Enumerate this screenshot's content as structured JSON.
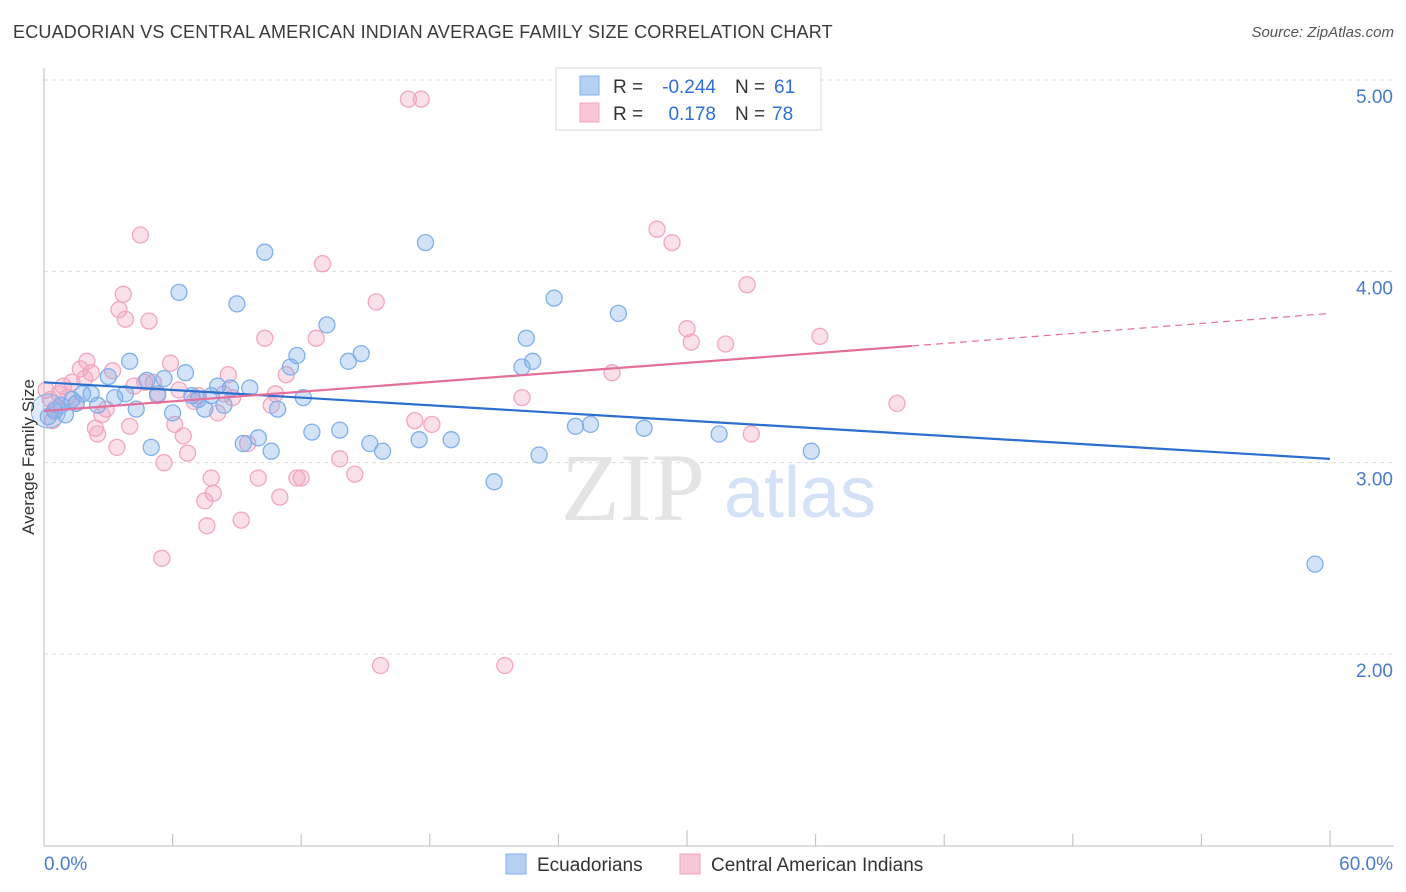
{
  "title": "ECUADORIAN VS CENTRAL AMERICAN INDIAN AVERAGE FAMILY SIZE CORRELATION CHART",
  "source": "Source: ZipAtlas.com",
  "watermark": {
    "zip": "ZIP",
    "atlas": "atlas"
  },
  "legend_top": [
    {
      "r_label": "R =",
      "r_value": "-0.244",
      "n_label": "N =",
      "n_value": "61"
    },
    {
      "r_label": "R =",
      "r_value": "0.178",
      "n_label": "N =",
      "n_value": "78"
    }
  ],
  "chart_data": {
    "type": "scatter",
    "title": "ECUADORIAN VS CENTRAL AMERICAN INDIAN AVERAGE FAMILY SIZE CORRELATION CHART",
    "xlabel": "",
    "ylabel": "Average Family Size",
    "xlim": [
      0,
      60
    ],
    "ylim": [
      1.0,
      5.1
    ],
    "x_tick_labels": [
      "0.0%",
      "60.0%"
    ],
    "y_ticks": [
      2.0,
      3.0,
      4.0,
      5.0
    ],
    "y_tick_labels": [
      "2.00",
      "3.00",
      "4.00",
      "5.00"
    ],
    "grid": true,
    "legend_position": "bottom-center",
    "series": [
      {
        "name": "Ecuadorians",
        "color": "#7fb0ec",
        "line_color": "#2d6fce",
        "r": -0.244,
        "n": 61,
        "trend": {
          "x": [
            0,
            60
          ],
          "y": [
            3.42,
            3.02
          ]
        },
        "points": [
          [
            0.2,
            3.24
          ],
          [
            0.5,
            3.27
          ],
          [
            0.8,
            3.3
          ],
          [
            1.0,
            3.25
          ],
          [
            1.3,
            3.33
          ],
          [
            1.5,
            3.31
          ],
          [
            1.8,
            3.36
          ],
          [
            2.2,
            3.36
          ],
          [
            2.5,
            3.3
          ],
          [
            3.0,
            3.45
          ],
          [
            3.3,
            3.34
          ],
          [
            3.8,
            3.36
          ],
          [
            4.0,
            3.53
          ],
          [
            4.3,
            3.28
          ],
          [
            4.8,
            3.43
          ],
          [
            5.0,
            3.08
          ],
          [
            5.3,
            3.36
          ],
          [
            5.6,
            3.44
          ],
          [
            6.0,
            3.26
          ],
          [
            6.3,
            3.89
          ],
          [
            6.6,
            3.47
          ],
          [
            6.9,
            3.35
          ],
          [
            7.2,
            3.33
          ],
          [
            7.5,
            3.28
          ],
          [
            7.8,
            3.35
          ],
          [
            8.1,
            3.4
          ],
          [
            8.4,
            3.3
          ],
          [
            8.7,
            3.39
          ],
          [
            9.0,
            3.83
          ],
          [
            9.3,
            3.1
          ],
          [
            9.6,
            3.39
          ],
          [
            10.0,
            3.13
          ],
          [
            10.3,
            4.1
          ],
          [
            10.6,
            3.06
          ],
          [
            10.9,
            3.28
          ],
          [
            11.5,
            3.5
          ],
          [
            11.8,
            3.56
          ],
          [
            12.1,
            3.34
          ],
          [
            12.5,
            3.16
          ],
          [
            13.2,
            3.72
          ],
          [
            13.8,
            3.17
          ],
          [
            14.2,
            3.53
          ],
          [
            14.8,
            3.57
          ],
          [
            15.2,
            3.1
          ],
          [
            15.8,
            3.06
          ],
          [
            17.5,
            3.12
          ],
          [
            17.8,
            4.15
          ],
          [
            19.0,
            3.12
          ],
          [
            21.0,
            2.9
          ],
          [
            22.3,
            3.5
          ],
          [
            22.5,
            3.65
          ],
          [
            22.8,
            3.53
          ],
          [
            23.1,
            3.04
          ],
          [
            23.8,
            3.86
          ],
          [
            24.8,
            3.19
          ],
          [
            25.5,
            3.2
          ],
          [
            26.8,
            3.78
          ],
          [
            28.0,
            3.18
          ],
          [
            31.5,
            3.15
          ],
          [
            35.8,
            3.06
          ],
          [
            59.3,
            2.47
          ]
        ]
      },
      {
        "name": "Central American Indians",
        "color": "#f2a6bf",
        "line_color": "#e2709b",
        "r": 0.178,
        "n": 78,
        "trend": {
          "x": [
            0,
            40.5
          ],
          "y": [
            3.27,
            3.61
          ]
        },
        "trend_dashed": {
          "x": [
            40.5,
            60
          ],
          "y": [
            3.61,
            3.78
          ]
        },
        "points": [
          [
            0.1,
            3.38
          ],
          [
            0.3,
            3.33
          ],
          [
            0.5,
            3.28
          ],
          [
            0.7,
            3.36
          ],
          [
            0.9,
            3.4
          ],
          [
            1.1,
            3.34
          ],
          [
            1.3,
            3.42
          ],
          [
            1.5,
            3.31
          ],
          [
            1.7,
            3.49
          ],
          [
            1.9,
            3.44
          ],
          [
            2.0,
            3.53
          ],
          [
            2.2,
            3.47
          ],
          [
            2.4,
            3.18
          ],
          [
            2.5,
            3.15
          ],
          [
            2.7,
            3.25
          ],
          [
            2.9,
            3.28
          ],
          [
            3.2,
            3.48
          ],
          [
            3.4,
            3.08
          ],
          [
            3.5,
            3.8
          ],
          [
            3.7,
            3.88
          ],
          [
            3.8,
            3.75
          ],
          [
            4.0,
            3.19
          ],
          [
            4.2,
            3.4
          ],
          [
            4.5,
            4.19
          ],
          [
            4.7,
            3.42
          ],
          [
            4.9,
            3.74
          ],
          [
            5.1,
            3.42
          ],
          [
            5.3,
            3.35
          ],
          [
            5.5,
            2.5
          ],
          [
            5.6,
            3.0
          ],
          [
            5.9,
            3.52
          ],
          [
            6.1,
            3.2
          ],
          [
            6.3,
            3.38
          ],
          [
            6.5,
            3.14
          ],
          [
            6.7,
            3.05
          ],
          [
            7.0,
            3.32
          ],
          [
            7.2,
            3.35
          ],
          [
            7.5,
            2.8
          ],
          [
            7.6,
            2.67
          ],
          [
            7.8,
            2.92
          ],
          [
            7.9,
            2.84
          ],
          [
            8.1,
            3.26
          ],
          [
            8.4,
            3.36
          ],
          [
            8.6,
            3.46
          ],
          [
            8.8,
            3.34
          ],
          [
            9.2,
            2.7
          ],
          [
            9.5,
            3.1
          ],
          [
            10.0,
            2.92
          ],
          [
            10.3,
            3.65
          ],
          [
            10.6,
            3.3
          ],
          [
            10.8,
            3.36
          ],
          [
            11.0,
            2.82
          ],
          [
            11.3,
            3.46
          ],
          [
            11.8,
            2.92
          ],
          [
            12.0,
            2.92
          ],
          [
            12.7,
            3.65
          ],
          [
            13.0,
            4.04
          ],
          [
            13.8,
            3.02
          ],
          [
            14.5,
            2.94
          ],
          [
            15.5,
            3.84
          ],
          [
            15.7,
            1.94
          ],
          [
            17.0,
            4.9
          ],
          [
            17.3,
            3.22
          ],
          [
            17.6,
            4.9
          ],
          [
            18.1,
            3.2
          ],
          [
            21.5,
            1.94
          ],
          [
            22.3,
            3.34
          ],
          [
            26.5,
            3.47
          ],
          [
            28.6,
            4.22
          ],
          [
            29.3,
            4.15
          ],
          [
            30.0,
            3.7
          ],
          [
            30.2,
            3.63
          ],
          [
            31.8,
            3.62
          ],
          [
            32.8,
            3.93
          ],
          [
            33.0,
            3.15
          ],
          [
            36.2,
            3.66
          ],
          [
            39.8,
            3.31
          ],
          [
            0.4,
            3.22
          ]
        ]
      }
    ]
  },
  "legend_bottom": [
    {
      "label": "Ecuadorians"
    },
    {
      "label": "Central American Indians"
    }
  ]
}
